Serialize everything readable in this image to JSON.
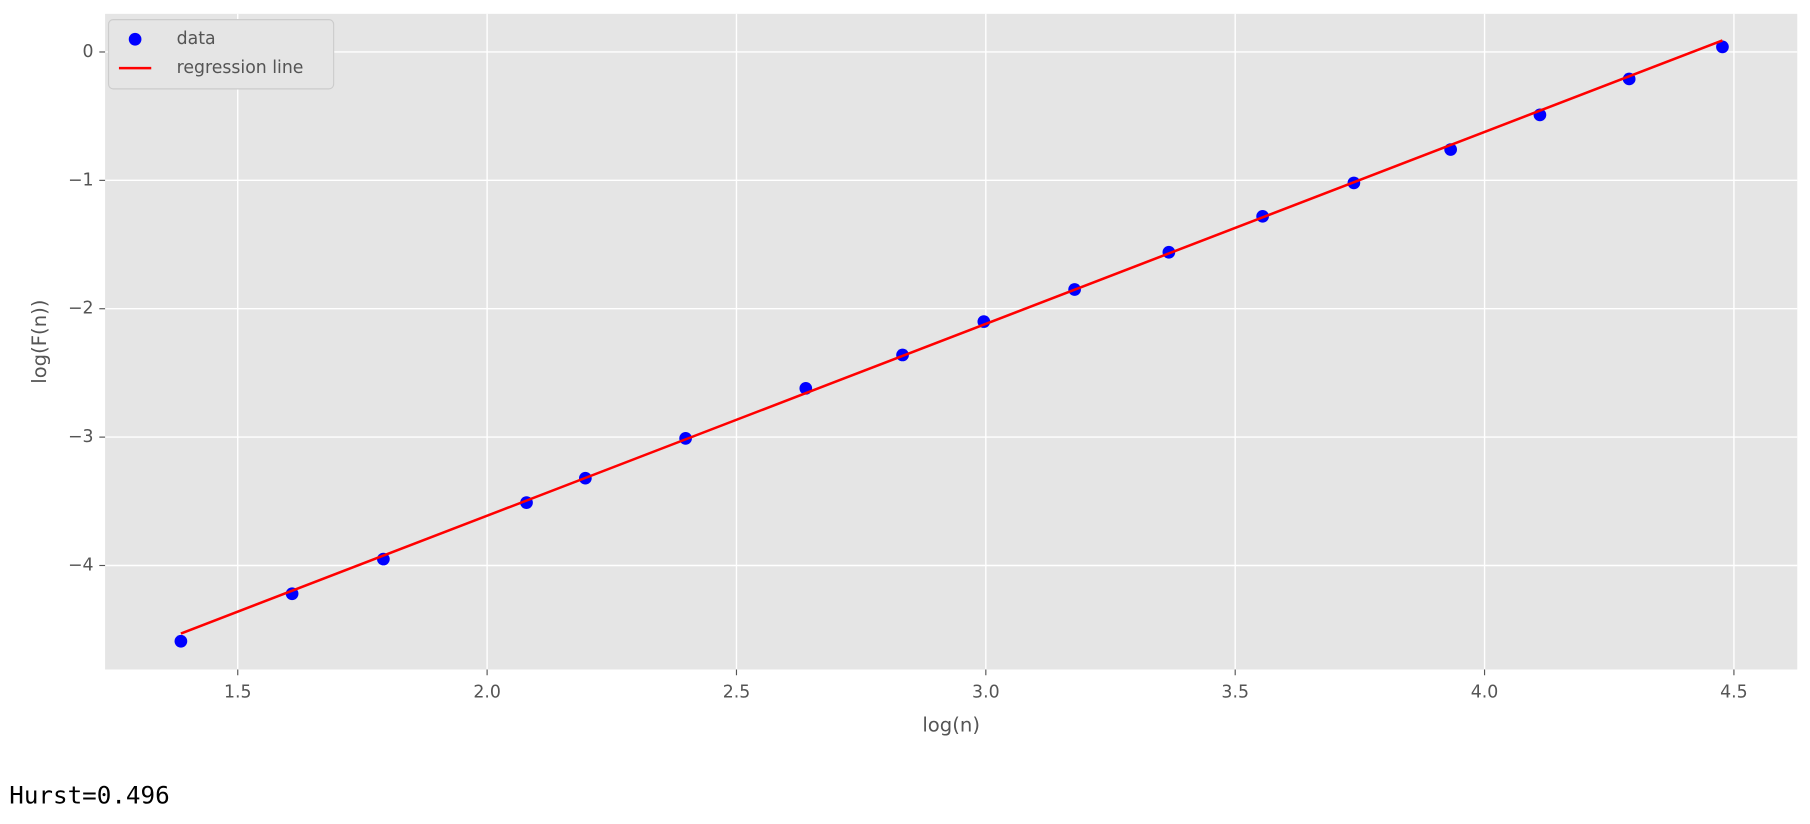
{
  "chart_data": {
    "type": "scatter",
    "xlabel": "log(n)",
    "ylabel": "log(F(n))",
    "series": [
      {
        "name": "data",
        "type": "scatter",
        "color": "#0000ff",
        "x": [
          1.386,
          1.609,
          1.792,
          2.079,
          2.197,
          2.398,
          2.639,
          2.833,
          2.996,
          3.178,
          3.367,
          3.555,
          3.738,
          3.932,
          4.111,
          4.29,
          4.477
        ],
        "values": [
          -4.59,
          -4.22,
          -3.95,
          -3.51,
          -3.32,
          -3.01,
          -2.62,
          -2.36,
          -2.1,
          -1.85,
          -1.56,
          -1.28,
          -1.02,
          -0.76,
          -0.49,
          -0.21,
          0.04
        ]
      },
      {
        "name": "regression line",
        "type": "line",
        "color": "#ff0000",
        "x": [
          1.386,
          4.477
        ],
        "values": [
          -4.53,
          0.09
        ]
      }
    ],
    "xlim": [
      1.234,
      4.627
    ],
    "ylim": [
      -4.81,
      0.297
    ],
    "xticks": [
      1.5,
      {
        "value": 2,
        "label": "2.0"
      },
      2.5,
      {
        "value": 3,
        "label": "3.0"
      },
      3.5,
      {
        "value": 4,
        "label": "4.0"
      },
      4.5
    ],
    "yticks": [
      {
        "value": -4,
        "label": "−4"
      },
      {
        "value": -3,
        "label": "−3"
      },
      {
        "value": -2,
        "label": "−2"
      },
      {
        "value": -1,
        "label": "−1"
      },
      0
    ],
    "grid": true,
    "legend": "upper left"
  },
  "output_text": "Hurst=0.496"
}
